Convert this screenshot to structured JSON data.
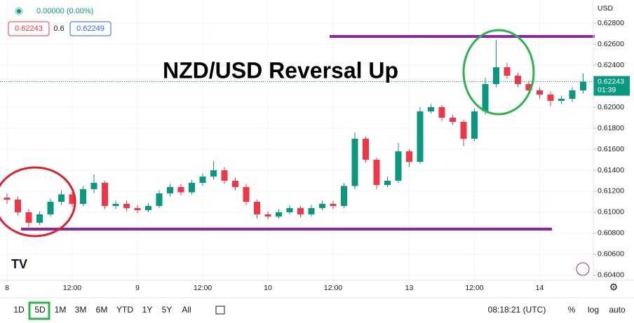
{
  "chart_data": {
    "type": "candlestick",
    "title": "NZD/USD Reversal Up",
    "currency": "USD",
    "header": {
      "change": "0.00000 (0.00%)",
      "bid": "0.62243",
      "spread": "0.6",
      "ask": "0.62249"
    },
    "countdown": "01:39",
    "up_color": "#089981",
    "down_color": "#f23645",
    "grid": true,
    "log": false,
    "categories": [
      "8",
      null,
      null,
      null,
      null,
      null,
      "12:00",
      null,
      null,
      null,
      null,
      null,
      "9",
      null,
      null,
      null,
      null,
      null,
      "12:00",
      null,
      null,
      null,
      null,
      null,
      "10",
      null,
      null,
      null,
      null,
      null,
      "12:00",
      null,
      null,
      null,
      null,
      null,
      null,
      "13",
      null,
      null,
      null,
      null,
      null,
      "12:00",
      null,
      null,
      null,
      null,
      null,
      "14",
      null,
      null,
      null,
      null
    ],
    "open": [
      0.6114,
      0.6112,
      0.61,
      0.609,
      0.6098,
      0.611,
      0.6117,
      0.6108,
      0.6122,
      0.6128,
      0.6106,
      0.6108,
      0.6104,
      0.6102,
      0.6106,
      0.6118,
      0.6124,
      0.6119,
      0.6128,
      0.6134,
      0.614,
      0.613,
      0.6124,
      0.611,
      0.6098,
      0.6096,
      0.61,
      0.6104,
      0.6098,
      0.6104,
      0.6108,
      0.6106,
      0.6125,
      0.617,
      0.615,
      0.6126,
      0.613,
      0.6158,
      0.6148,
      0.6196,
      0.62,
      0.619,
      0.6186,
      0.617,
      0.6196,
      0.6222,
      0.6238,
      0.623,
      0.6222,
      0.6216,
      0.6212,
      0.6206,
      0.6208,
      0.6216
    ],
    "high": [
      0.6118,
      0.6115,
      0.6103,
      0.6101,
      0.6113,
      0.6121,
      0.6119,
      0.6125,
      0.6136,
      0.613,
      0.6111,
      0.6111,
      0.6107,
      0.6109,
      0.6121,
      0.6127,
      0.6127,
      0.6131,
      0.6137,
      0.6149,
      0.6143,
      0.6133,
      0.6127,
      0.6112,
      0.6101,
      0.6103,
      0.6107,
      0.6106,
      0.6107,
      0.6111,
      0.6111,
      0.6128,
      0.6176,
      0.6172,
      0.6152,
      0.6134,
      0.6166,
      0.616,
      0.62,
      0.6203,
      0.6202,
      0.6193,
      0.6188,
      0.6199,
      0.6228,
      0.6264,
      0.6242,
      0.6233,
      0.6225,
      0.6219,
      0.6215,
      0.6211,
      0.6219,
      0.6232
    ],
    "low": [
      0.6108,
      0.6097,
      0.6086,
      0.6088,
      0.6096,
      0.6107,
      0.6105,
      0.6106,
      0.6118,
      0.6103,
      0.6103,
      0.6101,
      0.6099,
      0.61,
      0.6104,
      0.6115,
      0.6116,
      0.6117,
      0.6125,
      0.6131,
      0.6127,
      0.6121,
      0.6107,
      0.6094,
      0.6093,
      0.6094,
      0.6098,
      0.6095,
      0.6096,
      0.6102,
      0.6103,
      0.6104,
      0.6122,
      0.6147,
      0.6122,
      0.6124,
      0.6128,
      0.6143,
      0.6146,
      0.6194,
      0.6187,
      0.6183,
      0.6163,
      0.6168,
      0.6193,
      0.6219,
      0.6227,
      0.6219,
      0.6213,
      0.6208,
      0.6201,
      0.6203,
      0.6205,
      0.6213
    ],
    "close": [
      0.6112,
      0.61,
      0.609,
      0.6098,
      0.611,
      0.6117,
      0.6108,
      0.6122,
      0.6128,
      0.6106,
      0.6108,
      0.6104,
      0.6102,
      0.6106,
      0.6118,
      0.6124,
      0.6119,
      0.6128,
      0.6134,
      0.614,
      0.613,
      0.6124,
      0.611,
      0.6098,
      0.6096,
      0.61,
      0.6104,
      0.6098,
      0.6104,
      0.6108,
      0.6106,
      0.6125,
      0.617,
      0.615,
      0.6126,
      0.613,
      0.6158,
      0.6148,
      0.6196,
      0.62,
      0.619,
      0.6186,
      0.617,
      0.6196,
      0.6222,
      0.6238,
      0.623,
      0.6222,
      0.6216,
      0.6212,
      0.6206,
      0.6208,
      0.6216,
      0.62243
    ],
    "ylim": [
      0.60353,
      0.6302
    ],
    "yticks": [
      {
        "value": 0.604,
        "label": "0.60400"
      },
      {
        "value": 0.606,
        "label": "0.60600"
      },
      {
        "value": 0.608,
        "label": "0.60800"
      },
      {
        "value": 0.61,
        "label": "0.61000"
      },
      {
        "value": 0.612,
        "label": "0.61200"
      },
      {
        "value": 0.614,
        "label": "0.61400"
      },
      {
        "value": 0.616,
        "label": "0.61600"
      },
      {
        "value": 0.618,
        "label": "0.61800"
      },
      {
        "value": 0.62,
        "label": "0.62000"
      },
      {
        "value": 0.622,
        "label": "0.62200"
      },
      {
        "value": 0.624,
        "label": "0.62400"
      },
      {
        "value": 0.626,
        "label": "0.62600"
      },
      {
        "value": 0.628,
        "label": "0.62800"
      }
    ],
    "hlines": [
      {
        "value": 0.62673,
        "color": "#8e24aa"
      },
      {
        "value": 0.6084,
        "color": "#8e24aa"
      }
    ]
  },
  "toolbar": {
    "ranges": [
      "1D",
      "5D",
      "1M",
      "3M",
      "6M",
      "YTD",
      "1Y",
      "5Y",
      "All"
    ],
    "time": "08:18:21 (UTC)",
    "percent": "%",
    "log": "log",
    "auto": "auto"
  }
}
